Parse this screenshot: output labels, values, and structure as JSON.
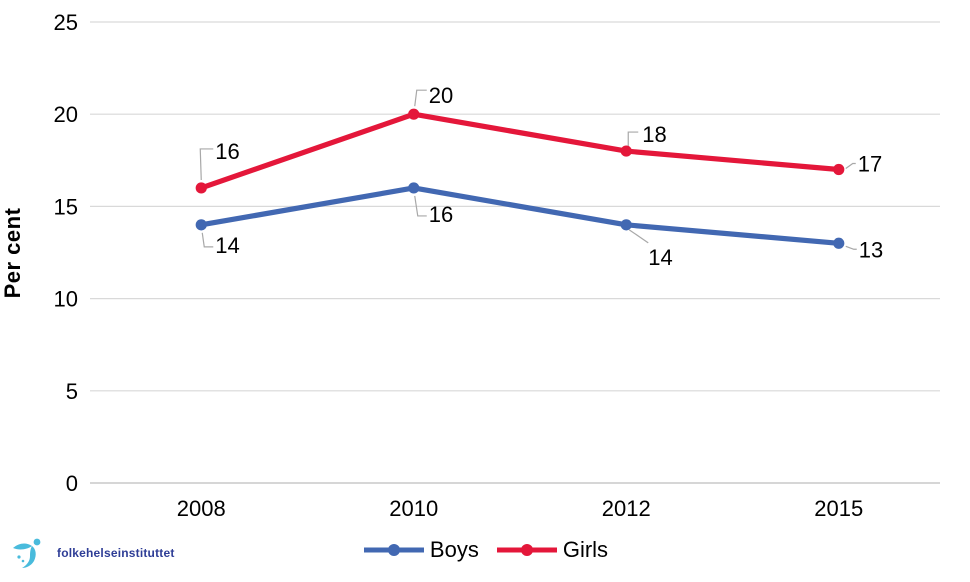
{
  "chart_data": {
    "type": "line",
    "title": "",
    "xlabel": "",
    "ylabel": "Per cent",
    "categories": [
      "2008",
      "2010",
      "2012",
      "2015"
    ],
    "series": [
      {
        "name": "Boys",
        "color": "#4268B2",
        "values": [
          14,
          16,
          14,
          13
        ]
      },
      {
        "name": "Girls",
        "color": "#E4173A",
        "values": [
          16,
          20,
          18,
          17
        ]
      }
    ],
    "ylim": [
      0,
      25
    ],
    "ytick_step": 5,
    "yticks": [
      0,
      5,
      10,
      15,
      20,
      25
    ],
    "grid": true,
    "data_labels": true,
    "legend_position": "bottom"
  },
  "colors": {
    "gridline": "#D9D9D9",
    "zero_axis": "#C8C8C8",
    "leader_line": "#A8A8A8",
    "tick_text": "#000000"
  },
  "logo": {
    "icon": "folkehelseinstituttet-bird-icon",
    "icon_color": "#49BBDC",
    "icon_accent_color": "#2BA6CB",
    "text": "folkehelseinstituttet",
    "text_color": "#2E3D96"
  }
}
